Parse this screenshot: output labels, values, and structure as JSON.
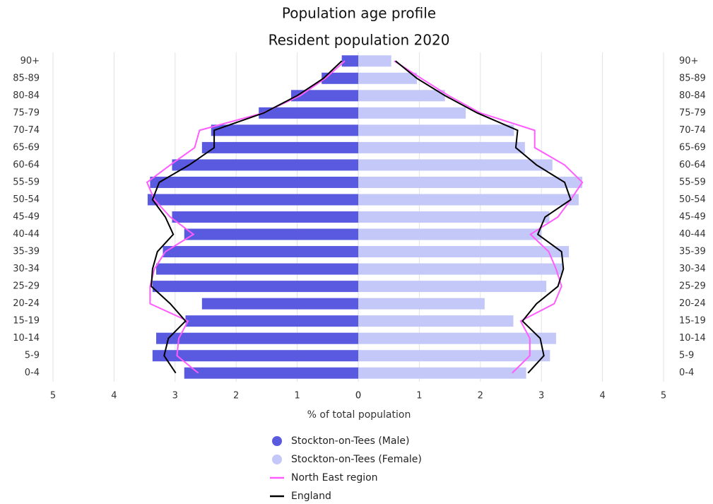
{
  "chart_data": {
    "type": "pyramid",
    "title": "Population age profile",
    "subtitle": "Resident population 2020",
    "x_label": "% of total population",
    "categories": [
      "0-4",
      "5-9",
      "10-14",
      "15-19",
      "20-24",
      "25-29",
      "30-34",
      "35-39",
      "40-44",
      "45-49",
      "50-54",
      "55-59",
      "60-64",
      "65-69",
      "70-74",
      "75-79",
      "80-84",
      "85-89",
      "90+"
    ],
    "xlim": [
      0,
      5
    ],
    "xticks": [
      0,
      1,
      2,
      3,
      4,
      5
    ],
    "grid": true,
    "series": [
      {
        "name": "Stockton-on-Tees (Male)",
        "color": "#5a5ae0",
        "type": "bar",
        "side": "left",
        "values": [
          2.85,
          3.37,
          3.31,
          2.83,
          2.56,
          3.37,
          3.31,
          3.2,
          2.85,
          3.05,
          3.45,
          3.41,
          3.05,
          2.56,
          2.41,
          1.63,
          1.1,
          0.6,
          0.27
        ]
      },
      {
        "name": "Stockton-on-Tees (Female)",
        "color": "#c4c8f8",
        "type": "bar",
        "side": "right",
        "values": [
          2.75,
          3.14,
          3.24,
          2.54,
          2.07,
          3.08,
          3.35,
          3.45,
          3.0,
          3.13,
          3.61,
          3.67,
          3.18,
          2.73,
          2.55,
          1.76,
          1.42,
          0.96,
          0.54
        ]
      },
      {
        "name": "North East region",
        "color": "#ff5cff",
        "type": "line",
        "left": [
          2.62,
          2.97,
          2.94,
          2.79,
          3.41,
          3.41,
          3.34,
          3.16,
          2.7,
          3.08,
          3.34,
          3.46,
          3.08,
          2.68,
          2.6,
          1.56,
          0.95,
          0.54,
          0.22
        ],
        "right": [
          2.52,
          2.81,
          2.81,
          2.66,
          3.21,
          3.33,
          3.24,
          3.12,
          2.82,
          3.27,
          3.48,
          3.67,
          3.38,
          2.89,
          2.89,
          2.0,
          1.48,
          1.03,
          0.59
        ]
      },
      {
        "name": "England",
        "color": "#000000",
        "type": "line",
        "left": [
          2.99,
          3.18,
          3.11,
          2.83,
          3.08,
          3.39,
          3.37,
          3.29,
          3.03,
          3.16,
          3.37,
          3.26,
          2.77,
          2.36,
          2.36,
          1.55,
          1.0,
          0.57,
          0.27
        ],
        "right": [
          2.78,
          3.04,
          2.98,
          2.69,
          2.92,
          3.27,
          3.36,
          3.33,
          2.94,
          3.06,
          3.48,
          3.38,
          2.92,
          2.58,
          2.61,
          1.95,
          1.42,
          0.96,
          0.61
        ]
      }
    ]
  }
}
